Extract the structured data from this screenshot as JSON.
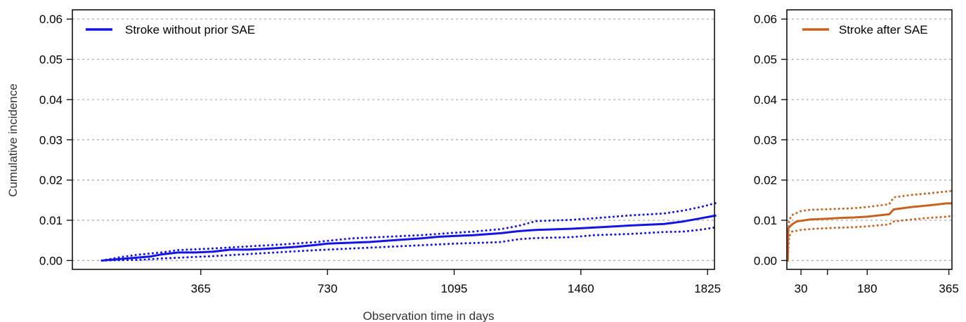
{
  "chart_data": [
    {
      "type": "line",
      "title": "",
      "xlabel": "Observation time in days",
      "ylabel": "Cumulative incidence",
      "xlim": [
        -5,
        1845
      ],
      "ylim": [
        -0.0022,
        0.0623
      ],
      "xticks": [
        365,
        730,
        1095,
        1460,
        1825
      ],
      "yticks": [
        0.0,
        0.01,
        0.02,
        0.03,
        0.04,
        0.05,
        0.06
      ],
      "ytick_labels": [
        "0.00",
        "0.01",
        "0.02",
        "0.03",
        "0.04",
        "0.05",
        "0.06"
      ],
      "grid": "horizontal dotted",
      "legend_position": "top-left",
      "series": [
        {
          "name": "Stroke without prior SAE",
          "color": "#1414e6",
          "style": "solid",
          "points": [
            [
              80,
              0.0
            ],
            [
              150,
              0.0005
            ],
            [
              220,
              0.001
            ],
            [
              250,
              0.0015
            ],
            [
              300,
              0.002
            ],
            [
              350,
              0.002
            ],
            [
              400,
              0.0022
            ],
            [
              450,
              0.0027
            ],
            [
              500,
              0.0027
            ],
            [
              550,
              0.0029
            ],
            [
              640,
              0.0034
            ],
            [
              700,
              0.0039
            ],
            [
              730,
              0.0042
            ],
            [
              850,
              0.0046
            ],
            [
              930,
              0.0051
            ],
            [
              1000,
              0.0055
            ],
            [
              1050,
              0.0059
            ],
            [
              1095,
              0.0061
            ],
            [
              1150,
              0.0063
            ],
            [
              1230,
              0.0068
            ],
            [
              1280,
              0.0073
            ],
            [
              1330,
              0.0076
            ],
            [
              1430,
              0.0079
            ],
            [
              1520,
              0.0083
            ],
            [
              1600,
              0.0087
            ],
            [
              1700,
              0.0091
            ],
            [
              1755,
              0.0097
            ],
            [
              1800,
              0.0104
            ],
            [
              1850,
              0.0112
            ]
          ]
        },
        {
          "name": "",
          "color": "#1414e6",
          "style": "dotted",
          "points": [
            [
              80,
              0.0
            ],
            [
              130,
              0.0008
            ],
            [
              180,
              0.0014
            ],
            [
              250,
              0.002
            ],
            [
              300,
              0.0026
            ],
            [
              400,
              0.003
            ],
            [
              500,
              0.0035
            ],
            [
              600,
              0.004
            ],
            [
              700,
              0.0046
            ],
            [
              730,
              0.0049
            ],
            [
              800,
              0.0055
            ],
            [
              900,
              0.0059
            ],
            [
              1000,
              0.0063
            ],
            [
              1095,
              0.0069
            ],
            [
              1150,
              0.0072
            ],
            [
              1230,
              0.0078
            ],
            [
              1280,
              0.0086
            ],
            [
              1330,
              0.0098
            ],
            [
              1430,
              0.0101
            ],
            [
              1500,
              0.0105
            ],
            [
              1600,
              0.0112
            ],
            [
              1700,
              0.0117
            ],
            [
              1755,
              0.0124
            ],
            [
              1810,
              0.0134
            ],
            [
              1850,
              0.0143
            ]
          ]
        },
        {
          "name": "",
          "color": "#1414e6",
          "style": "dotted",
          "points": [
            [
              80,
              0.0
            ],
            [
              200,
              0.0002
            ],
            [
              250,
              0.0005
            ],
            [
              300,
              0.0007
            ],
            [
              400,
              0.0011
            ],
            [
              500,
              0.0016
            ],
            [
              600,
              0.0021
            ],
            [
              700,
              0.0026
            ],
            [
              800,
              0.003
            ],
            [
              900,
              0.0034
            ],
            [
              1000,
              0.0038
            ],
            [
              1095,
              0.0042
            ],
            [
              1200,
              0.0045
            ],
            [
              1230,
              0.0046
            ],
            [
              1280,
              0.0053
            ],
            [
              1330,
              0.0056
            ],
            [
              1430,
              0.0058
            ],
            [
              1500,
              0.0063
            ],
            [
              1600,
              0.0066
            ],
            [
              1700,
              0.0071
            ],
            [
              1755,
              0.0072
            ],
            [
              1810,
              0.0077
            ],
            [
              1850,
              0.0083
            ]
          ]
        }
      ]
    },
    {
      "type": "line",
      "title": "",
      "xlabel": "",
      "ylabel": "",
      "xlim": [
        -2,
        372
      ],
      "ylim": [
        -0.0022,
        0.0623
      ],
      "xticks": [
        30,
        180,
        365
      ],
      "minor_xticks": [
        90
      ],
      "yticks": [
        0.0,
        0.01,
        0.02,
        0.03,
        0.04,
        0.05,
        0.06
      ],
      "ytick_labels": [
        "0.00",
        "0.01",
        "0.02",
        "0.03",
        "0.04",
        "0.05",
        "0.06"
      ],
      "grid": "horizontal dotted",
      "legend_position": "top-right",
      "series": [
        {
          "name": "Stroke after SAE",
          "color": "#c8621e",
          "style": "solid",
          "points": [
            [
              0,
              0.0
            ],
            [
              1,
              0.008
            ],
            [
              10,
              0.009
            ],
            [
              20,
              0.0097
            ],
            [
              50,
              0.0102
            ],
            [
              90,
              0.0104
            ],
            [
              120,
              0.0106
            ],
            [
              150,
              0.0107
            ],
            [
              180,
              0.0109
            ],
            [
              230,
              0.0115
            ],
            [
              240,
              0.0127
            ],
            [
              280,
              0.0133
            ],
            [
              320,
              0.0137
            ],
            [
              360,
              0.0142
            ],
            [
              372,
              0.0142
            ]
          ]
        },
        {
          "name": "",
          "color": "#c8621e",
          "style": "dotted",
          "points": [
            [
              0,
              0.0
            ],
            [
              3,
              0.01
            ],
            [
              10,
              0.0113
            ],
            [
              30,
              0.0123
            ],
            [
              50,
              0.0126
            ],
            [
              100,
              0.0128
            ],
            [
              150,
              0.013
            ],
            [
              180,
              0.0133
            ],
            [
              230,
              0.014
            ],
            [
              240,
              0.0157
            ],
            [
              280,
              0.0163
            ],
            [
              320,
              0.0167
            ],
            [
              372,
              0.0173
            ]
          ]
        },
        {
          "name": "",
          "color": "#c8621e",
          "style": "dotted",
          "points": [
            [
              0,
              0.0
            ],
            [
              3,
              0.006
            ],
            [
              10,
              0.0072
            ],
            [
              30,
              0.0076
            ],
            [
              60,
              0.0079
            ],
            [
              100,
              0.0081
            ],
            [
              150,
              0.0083
            ],
            [
              180,
              0.0085
            ],
            [
              230,
              0.009
            ],
            [
              240,
              0.0097
            ],
            [
              280,
              0.0102
            ],
            [
              320,
              0.0106
            ],
            [
              360,
              0.0109
            ],
            [
              372,
              0.0111
            ]
          ]
        }
      ]
    }
  ]
}
